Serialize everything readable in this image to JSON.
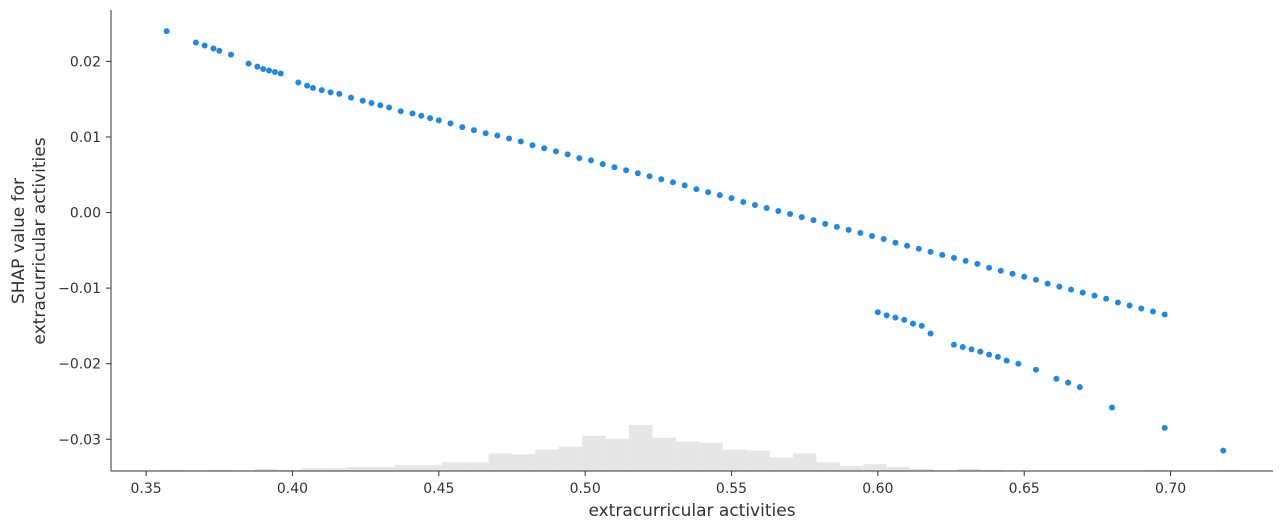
{
  "chart_data": {
    "type": "scatter",
    "title": "",
    "xlabel": "extracurricular activities",
    "ylabel_lines": [
      "SHAP value for",
      "extracurricular activities"
    ],
    "xlim": [
      0.338,
      0.735
    ],
    "ylim": [
      -0.0342,
      0.0268
    ],
    "x_ticks": [
      0.35,
      0.4,
      0.45,
      0.5,
      0.55,
      0.6,
      0.65,
      0.7
    ],
    "x_tick_labels": [
      "0.35",
      "0.40",
      "0.45",
      "0.50",
      "0.55",
      "0.60",
      "0.65",
      "0.70"
    ],
    "y_ticks": [
      0.02,
      0.01,
      0.0,
      -0.01,
      -0.02,
      -0.03
    ],
    "y_tick_labels": [
      "0.02",
      "0.01",
      "0.00",
      "−0.01",
      "−0.02",
      "−0.03"
    ],
    "grid": false,
    "point_color": "#1e88e5",
    "histogram_color": "#e6e6e6",
    "series": [
      {
        "points": [
          [
            0.357,
            0.024
          ],
          [
            0.367,
            0.0225
          ],
          [
            0.37,
            0.0221
          ],
          [
            0.373,
            0.0217
          ],
          [
            0.375,
            0.0214
          ],
          [
            0.379,
            0.0209
          ],
          [
            0.385,
            0.0197
          ],
          [
            0.388,
            0.0193
          ],
          [
            0.39,
            0.019
          ],
          [
            0.392,
            0.0188
          ],
          [
            0.394,
            0.0186
          ],
          [
            0.396,
            0.0184
          ],
          [
            0.402,
            0.0172
          ],
          [
            0.405,
            0.0168
          ],
          [
            0.407,
            0.0165
          ],
          [
            0.41,
            0.0162
          ],
          [
            0.413,
            0.0159
          ],
          [
            0.416,
            0.0157
          ],
          [
            0.42,
            0.0152
          ],
          [
            0.424,
            0.0148
          ],
          [
            0.427,
            0.0145
          ],
          [
            0.43,
            0.0142
          ],
          [
            0.433,
            0.0139
          ],
          [
            0.437,
            0.0134
          ],
          [
            0.441,
            0.0131
          ],
          [
            0.444,
            0.0128
          ],
          [
            0.447,
            0.0125
          ],
          [
            0.45,
            0.0122
          ],
          [
            0.454,
            0.0118
          ],
          [
            0.458,
            0.0113
          ],
          [
            0.462,
            0.0109
          ],
          [
            0.466,
            0.0105
          ],
          [
            0.47,
            0.0102
          ],
          [
            0.474,
            0.0098
          ],
          [
            0.478,
            0.0094
          ],
          [
            0.482,
            0.0089
          ],
          [
            0.486,
            0.0085
          ],
          [
            0.49,
            0.0081
          ],
          [
            0.494,
            0.0077
          ],
          [
            0.498,
            0.0072
          ],
          [
            0.502,
            0.0069
          ],
          [
            0.506,
            0.0064
          ],
          [
            0.51,
            0.006
          ],
          [
            0.514,
            0.0056
          ],
          [
            0.518,
            0.0052
          ],
          [
            0.522,
            0.0048
          ],
          [
            0.526,
            0.0044
          ],
          [
            0.53,
            0.004
          ],
          [
            0.534,
            0.0036
          ],
          [
            0.538,
            0.0031
          ],
          [
            0.542,
            0.0027
          ],
          [
            0.546,
            0.0023
          ],
          [
            0.55,
            0.0019
          ],
          [
            0.554,
            0.0014
          ],
          [
            0.558,
            0.001
          ],
          [
            0.562,
            0.0006
          ],
          [
            0.566,
            0.0002
          ],
          [
            0.57,
            -0.0002
          ],
          [
            0.574,
            -0.0006
          ],
          [
            0.578,
            -0.001
          ],
          [
            0.582,
            -0.0015
          ],
          [
            0.586,
            -0.0019
          ],
          [
            0.59,
            -0.0023
          ],
          [
            0.594,
            -0.0027
          ],
          [
            0.598,
            -0.0031
          ],
          [
            0.602,
            -0.0035
          ],
          [
            0.606,
            -0.004
          ],
          [
            0.61,
            -0.0044
          ],
          [
            0.614,
            -0.0048
          ],
          [
            0.618,
            -0.0052
          ],
          [
            0.622,
            -0.0056
          ],
          [
            0.626,
            -0.006
          ],
          [
            0.63,
            -0.0064
          ],
          [
            0.634,
            -0.0068
          ],
          [
            0.638,
            -0.0073
          ],
          [
            0.642,
            -0.0077
          ],
          [
            0.646,
            -0.0081
          ],
          [
            0.65,
            -0.0085
          ],
          [
            0.654,
            -0.0089
          ],
          [
            0.658,
            -0.0094
          ],
          [
            0.662,
            -0.0098
          ],
          [
            0.666,
            -0.0102
          ],
          [
            0.67,
            -0.0106
          ],
          [
            0.674,
            -0.011
          ],
          [
            0.678,
            -0.0114
          ],
          [
            0.682,
            -0.0119
          ],
          [
            0.686,
            -0.0123
          ],
          [
            0.69,
            -0.0127
          ],
          [
            0.694,
            -0.0131
          ],
          [
            0.698,
            -0.0135
          ],
          [
            0.6,
            -0.0132
          ],
          [
            0.603,
            -0.0136
          ],
          [
            0.606,
            -0.0139
          ],
          [
            0.609,
            -0.0142
          ],
          [
            0.612,
            -0.0147
          ],
          [
            0.615,
            -0.015
          ],
          [
            0.618,
            -0.016
          ],
          [
            0.626,
            -0.0175
          ],
          [
            0.629,
            -0.0178
          ],
          [
            0.632,
            -0.0181
          ],
          [
            0.635,
            -0.0184
          ],
          [
            0.638,
            -0.0188
          ],
          [
            0.641,
            -0.0191
          ],
          [
            0.644,
            -0.0196
          ],
          [
            0.648,
            -0.02
          ],
          [
            0.654,
            -0.0208
          ],
          [
            0.661,
            -0.022
          ],
          [
            0.665,
            -0.0225
          ],
          [
            0.669,
            -0.0231
          ],
          [
            0.68,
            -0.0258
          ],
          [
            0.698,
            -0.0285
          ],
          [
            0.718,
            -0.0315
          ]
        ]
      }
    ],
    "histogram": {
      "bins": [
        0.355,
        0.363,
        0.371,
        0.379,
        0.387,
        0.395,
        0.403,
        0.411,
        0.419,
        0.427,
        0.435,
        0.443,
        0.451,
        0.459,
        0.467,
        0.475,
        0.483,
        0.491,
        0.499,
        0.507,
        0.515,
        0.523,
        0.531,
        0.539,
        0.547,
        0.555,
        0.563,
        0.571,
        0.579,
        0.587,
        0.595,
        0.603,
        0.611,
        0.619,
        0.627,
        0.635,
        0.643,
        0.651,
        0.659,
        0.667,
        0.675,
        0.683,
        0.691,
        0.699,
        0.707,
        0.715,
        0.723
      ],
      "counts": [
        1,
        0,
        1,
        0,
        2,
        1,
        3,
        3,
        4,
        4,
        6,
        6,
        9,
        9,
        18,
        17,
        22,
        25,
        36,
        33,
        47,
        34,
        30,
        29,
        22,
        21,
        14,
        18,
        9,
        5,
        7,
        4,
        2,
        0,
        2,
        1,
        0,
        0,
        0,
        0,
        0,
        0,
        1,
        0,
        0,
        1
      ]
    }
  }
}
